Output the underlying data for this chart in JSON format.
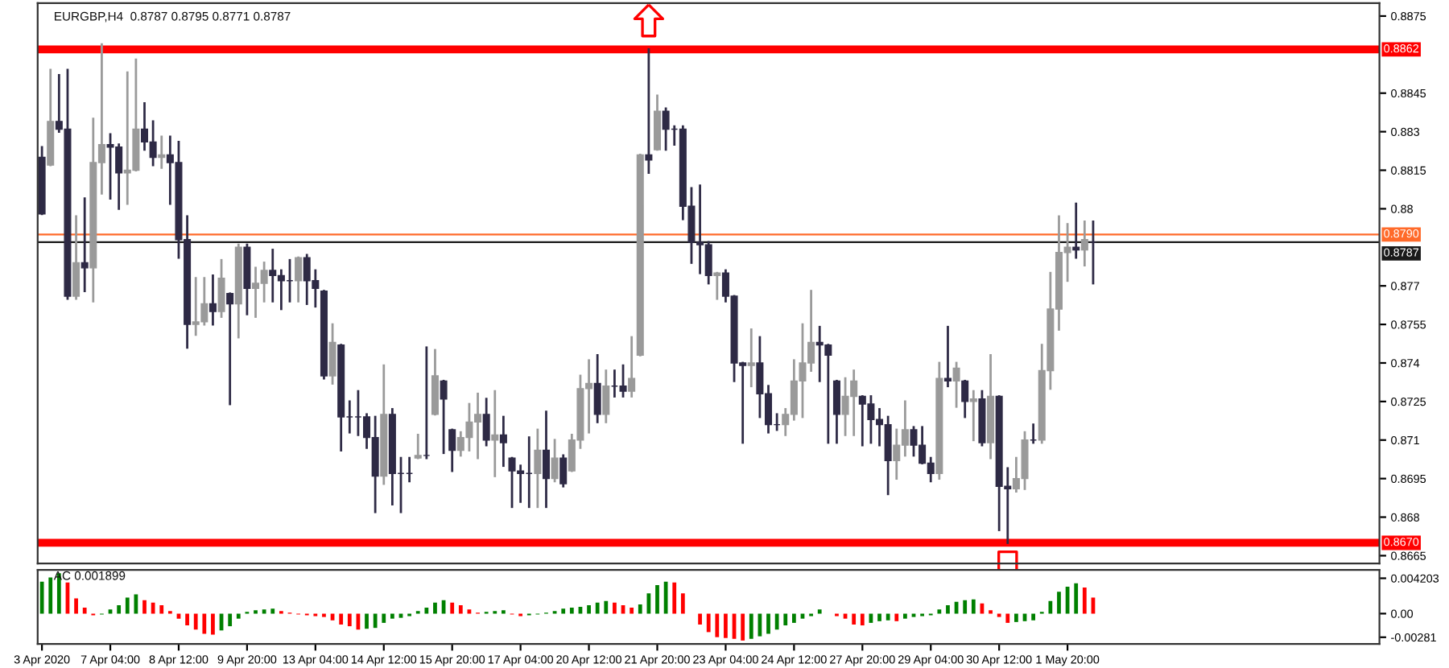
{
  "chart_data": [
    {
      "type": "candlestick",
      "title": "EURGBP,H4  0.8787 0.8795 0.8771 0.8787",
      "categories": [
        null,
        null,
        null,
        null,
        null,
        null,
        null,
        null,
        null,
        null,
        null,
        null,
        null,
        null,
        null,
        null,
        null,
        null,
        null,
        null,
        null,
        null,
        null,
        null,
        null,
        null,
        null,
        null,
        null,
        null,
        null,
        null,
        null,
        null,
        null,
        null,
        null,
        null,
        null,
        null,
        null,
        null,
        null,
        null,
        null,
        null,
        null,
        null,
        null,
        null,
        null,
        null,
        null,
        null,
        null,
        null,
        null,
        null,
        null,
        null,
        null,
        null,
        null,
        null,
        null,
        null,
        null,
        null,
        null,
        null,
        null,
        null,
        null,
        null,
        null,
        null,
        null,
        null,
        null,
        null,
        null,
        null,
        null,
        null,
        null,
        null,
        null,
        null,
        null,
        null,
        null,
        null,
        null,
        null,
        null,
        null,
        null,
        null,
        null,
        null,
        null,
        null,
        null,
        null,
        null,
        null,
        null,
        null,
        null,
        null,
        null,
        null,
        null,
        null,
        null,
        null,
        null,
        null,
        null,
        null,
        null,
        null,
        null,
        null,
        null,
        null,
        null,
        null,
        null,
        null,
        null,
        null,
        null,
        null,
        null,
        null,
        null,
        null,
        null,
        null,
        null,
        null,
        null,
        null,
        null,
        null,
        null,
        null,
        null,
        null,
        null,
        null,
        null,
        null,
        null,
        null,
        null
      ],
      "ohlc": [
        [
          0.882,
          0.8824,
          0.8798,
          0.8798
        ],
        [
          0.8817,
          0.8854,
          0.8817,
          0.8834
        ],
        [
          0.8834,
          0.8852,
          0.883,
          0.8831
        ],
        [
          0.8831,
          0.8854,
          0.8765,
          0.8766
        ],
        [
          0.8766,
          0.8797,
          0.8765,
          0.8779
        ],
        [
          0.8779,
          0.8804,
          0.8768,
          0.8777
        ],
        [
          0.8777,
          0.8835,
          0.8764,
          0.8818
        ],
        [
          0.8818,
          0.8864,
          0.8806,
          0.8825
        ],
        [
          0.8825,
          0.8829,
          0.8804,
          0.8824
        ],
        [
          0.8824,
          0.8825,
          0.88,
          0.8814
        ],
        [
          0.8814,
          0.8853,
          0.8802,
          0.8815
        ],
        [
          0.8815,
          0.8858,
          0.8815,
          0.8831
        ],
        [
          0.8831,
          0.8841,
          0.8823,
          0.8826
        ],
        [
          0.8826,
          0.8834,
          0.8817,
          0.882
        ],
        [
          0.882,
          0.8828,
          0.8816,
          0.8821
        ],
        [
          0.8821,
          0.8828,
          0.8802,
          0.8818
        ],
        [
          0.8818,
          0.8826,
          0.8781,
          0.8788
        ],
        [
          0.8788,
          0.8797,
          0.8746,
          0.8755
        ],
        [
          0.8755,
          0.8773,
          0.8751,
          0.8756
        ],
        [
          0.8756,
          0.8773,
          0.8755,
          0.8763
        ],
        [
          0.8763,
          0.8774,
          0.8755,
          0.876
        ],
        [
          0.876,
          0.878,
          0.8758,
          0.8773
        ],
        [
          0.8767,
          0.8767,
          0.8724,
          0.8763
        ],
        [
          0.8763,
          0.8786,
          0.875,
          0.8785
        ],
        [
          0.8785,
          0.8786,
          0.8759,
          0.8769
        ],
        [
          0.8769,
          0.8777,
          0.8758,
          0.8771
        ],
        [
          0.8771,
          0.8779,
          0.8764,
          0.8776
        ],
        [
          0.8776,
          0.8784,
          0.8764,
          0.8774
        ],
        [
          0.8774,
          0.8776,
          0.8761,
          0.8772
        ],
        [
          0.8772,
          0.878,
          0.8764,
          0.8772
        ],
        [
          0.8772,
          0.8781,
          0.8764,
          0.8781
        ],
        [
          0.8781,
          0.8782,
          0.8763,
          0.8772
        ],
        [
          0.8772,
          0.8776,
          0.8762,
          0.8769
        ],
        [
          0.8768,
          0.8768,
          0.8734,
          0.8735
        ],
        [
          0.8735,
          0.8755,
          0.8732,
          0.8748
        ],
        [
          0.8747,
          0.8747,
          0.8706,
          0.8719
        ],
        [
          0.8719,
          0.8725,
          0.8713,
          0.8719
        ],
        [
          0.8719,
          0.8729,
          0.8712,
          0.8719
        ],
        [
          0.8719,
          0.872,
          0.8707,
          0.8711
        ],
        [
          0.8711,
          0.8719,
          0.8682,
          0.8696
        ],
        [
          0.8696,
          0.8739,
          0.8693,
          0.872
        ],
        [
          0.872,
          0.8722,
          0.8685,
          0.8697
        ],
        [
          0.8697,
          0.8703,
          0.8682,
          0.8697
        ],
        [
          0.8697,
          0.8703,
          0.8694,
          0.8697
        ],
        [
          0.8703,
          0.8712,
          0.8703,
          0.8704
        ],
        [
          0.8704,
          0.8746,
          0.8703,
          0.8704
        ],
        [
          0.872,
          0.8745,
          0.872,
          0.8735
        ],
        [
          0.8733,
          0.8733,
          0.8705,
          0.8726
        ],
        [
          0.8714,
          0.8714,
          0.8698,
          0.8706
        ],
        [
          0.8706,
          0.8713,
          0.8704,
          0.8711
        ],
        [
          0.8711,
          0.8724,
          0.8706,
          0.8717
        ],
        [
          0.8717,
          0.8728,
          0.8703,
          0.872
        ],
        [
          0.872,
          0.8726,
          0.8708,
          0.871
        ],
        [
          0.871,
          0.8729,
          0.8696,
          0.8712
        ],
        [
          0.8712,
          0.8719,
          0.87,
          0.8709
        ],
        [
          0.8703,
          0.8703,
          0.8684,
          0.8698
        ],
        [
          0.8698,
          0.87,
          0.8686,
          0.8697
        ],
        [
          0.8697,
          0.8711,
          0.8684,
          0.8697
        ],
        [
          0.8697,
          0.8714,
          0.8684,
          0.8706
        ],
        [
          0.8706,
          0.8721,
          0.8684,
          0.8695
        ],
        [
          0.8695,
          0.871,
          0.8694,
          0.8703
        ],
        [
          0.8703,
          0.8704,
          0.8692,
          0.8693
        ],
        [
          0.8698,
          0.8712,
          0.8698,
          0.871
        ],
        [
          0.871,
          0.8735,
          0.8707,
          0.873
        ],
        [
          0.873,
          0.8741,
          0.8713,
          0.8732
        ],
        [
          0.8732,
          0.8743,
          0.8717,
          0.872
        ],
        [
          0.872,
          0.8737,
          0.8717,
          0.8731
        ],
        [
          0.8731,
          0.8737,
          0.8727,
          0.8731
        ],
        [
          0.8731,
          0.8739,
          0.8727,
          0.8729
        ],
        [
          0.8729,
          0.875,
          0.8727,
          0.8734
        ],
        [
          0.8743,
          0.8821,
          0.8743,
          0.8821
        ],
        [
          0.8821,
          0.8862,
          0.8814,
          0.8819
        ],
        [
          0.8823,
          0.8844,
          0.8823,
          0.8838
        ],
        [
          0.8838,
          0.8839,
          0.8823,
          0.8831
        ],
        [
          0.8831,
          0.8832,
          0.8825,
          0.8831
        ],
        [
          0.8831,
          0.8832,
          0.8796,
          0.8801
        ],
        [
          0.8801,
          0.8808,
          0.8779,
          0.8787
        ],
        [
          0.8787,
          0.8809,
          0.8775,
          0.8786
        ],
        [
          0.8786,
          0.8787,
          0.8771,
          0.8774
        ],
        [
          0.8774,
          0.8775,
          0.8765,
          0.8775
        ],
        [
          0.8775,
          0.8776,
          0.8764,
          0.8766
        ],
        [
          0.8766,
          0.8766,
          0.8733,
          0.874
        ],
        [
          0.874,
          0.874,
          0.8709,
          0.8739
        ],
        [
          0.8739,
          0.8753,
          0.8731,
          0.874
        ],
        [
          0.874,
          0.875,
          0.8719,
          0.8728
        ],
        [
          0.8728,
          0.8731,
          0.8713,
          0.8716
        ],
        [
          0.8716,
          0.872,
          0.8714,
          0.8716
        ],
        [
          0.8716,
          0.8722,
          0.8712,
          0.872
        ],
        [
          0.872,
          0.8741,
          0.8718,
          0.8733
        ],
        [
          0.8733,
          0.8755,
          0.8719,
          0.874
        ],
        [
          0.874,
          0.8768,
          0.8737,
          0.8748
        ],
        [
          0.8748,
          0.8754,
          0.8733,
          0.8747
        ],
        [
          0.8747,
          0.8747,
          0.8709,
          0.8743
        ],
        [
          0.8733,
          0.8733,
          0.8709,
          0.872
        ],
        [
          0.872,
          0.8734,
          0.8712,
          0.8727
        ],
        [
          0.8727,
          0.8737,
          0.8712,
          0.8733
        ],
        [
          0.8727,
          0.8727,
          0.8708,
          0.8724
        ],
        [
          0.8724,
          0.8727,
          0.8709,
          0.8718
        ],
        [
          0.8718,
          0.8722,
          0.8708,
          0.8716
        ],
        [
          0.8716,
          0.8719,
          0.8689,
          0.8702
        ],
        [
          0.8702,
          0.8714,
          0.8695,
          0.8708
        ],
        [
          0.8708,
          0.8725,
          0.8704,
          0.8714
        ],
        [
          0.8714,
          0.8715,
          0.8704,
          0.8708
        ],
        [
          0.8708,
          0.8715,
          0.8701,
          0.8701
        ],
        [
          0.8701,
          0.8703,
          0.8694,
          0.8697
        ],
        [
          0.8697,
          0.874,
          0.8695,
          0.8734
        ],
        [
          0.8734,
          0.8754,
          0.8731,
          0.8733
        ],
        [
          0.8733,
          0.874,
          0.8723,
          0.8738
        ],
        [
          0.8733,
          0.8733,
          0.8719,
          0.8725
        ],
        [
          0.8725,
          0.8729,
          0.871,
          0.8726
        ],
        [
          0.8726,
          0.8729,
          0.8708,
          0.8709
        ],
        [
          0.8709,
          0.8743,
          0.8703,
          0.8727
        ],
        [
          0.8727,
          0.8727,
          0.8675,
          0.8692
        ],
        [
          0.8692,
          0.8699,
          0.867,
          0.8691
        ],
        [
          0.8691,
          0.8703,
          0.869,
          0.8695
        ],
        [
          0.8695,
          0.8713,
          0.8691,
          0.871
        ],
        [
          0.871,
          0.8716,
          0.8709,
          0.871
        ],
        [
          0.871,
          0.8747,
          0.8709,
          0.8737
        ],
        [
          0.8737,
          0.8775,
          0.873,
          0.8761
        ],
        [
          0.8761,
          0.8797,
          0.8753,
          0.8783
        ],
        [
          0.8783,
          0.8794,
          0.8772,
          0.8785
        ],
        [
          0.8785,
          0.8802,
          0.8781,
          0.8784
        ],
        [
          0.8784,
          0.8795,
          0.8778,
          0.8788
        ],
        [
          0.8787,
          0.8795,
          0.8771,
          0.8787
        ],
        null,
        null,
        null,
        null,
        null,
        null,
        null,
        null,
        null,
        null,
        null,
        null,
        null,
        null,
        null,
        null,
        null,
        null,
        null,
        null,
        null,
        null,
        null,
        null,
        null,
        null,
        null,
        null,
        null,
        null,
        null,
        null,
        null
      ],
      "colors": [
        "#2e2a45",
        "#9a9a9a",
        "#2e2a45",
        "#2e2a45",
        "#9a9a9a",
        "#2e2a45",
        "#9a9a9a",
        "#9a9a9a",
        "#2e2a45",
        "#2e2a45",
        "#9a9a9a",
        "#9a9a9a",
        "#2e2a45",
        "#2e2a45",
        "#9a9a9a",
        "#2e2a45",
        "#2e2a45",
        "#2e2a45",
        "#9a9a9a",
        "#9a9a9a",
        "#2e2a45",
        "#9a9a9a",
        "#2e2a45",
        "#9a9a9a",
        "#2e2a45",
        "#9a9a9a",
        "#9a9a9a",
        "#2e2a45",
        "#2e2a45",
        "#2e2a45",
        "#9a9a9a",
        "#2e2a45",
        "#2e2a45",
        "#2e2a45",
        "#9a9a9a",
        "#2e2a45",
        "#2e2a45",
        "#2e2a45",
        "#2e2a45",
        "#2e2a45",
        "#9a9a9a",
        "#2e2a45",
        "#2e2a45",
        "#2e2a45",
        "#9a9a9a",
        "#2e2a45",
        "#9a9a9a",
        "#2e2a45",
        "#2e2a45",
        "#9a9a9a",
        "#9a9a9a",
        "#9a9a9a",
        "#2e2a45",
        "#9a9a9a",
        "#2e2a45",
        "#2e2a45",
        "#2e2a45",
        "#2e2a45",
        "#9a9a9a",
        "#2e2a45",
        "#9a9a9a",
        "#2e2a45",
        "#9a9a9a",
        "#9a9a9a",
        "#9a9a9a",
        "#2e2a45",
        "#9a9a9a",
        "#2e2a45",
        "#2e2a45",
        "#9a9a9a",
        "#9a9a9a",
        "#2e2a45",
        "#9a9a9a",
        "#2e2a45",
        "#2e2a45",
        "#2e2a45",
        "#2e2a45",
        "#2e2a45",
        "#2e2a45",
        "#9a9a9a",
        "#2e2a45",
        "#2e2a45",
        "#2e2a45",
        "#9a9a9a",
        "#2e2a45",
        "#2e2a45",
        "#2e2a45",
        "#9a9a9a",
        "#9a9a9a",
        "#9a9a9a",
        "#9a9a9a",
        "#2e2a45",
        "#2e2a45",
        "#2e2a45",
        "#9a9a9a",
        "#9a9a9a",
        "#2e2a45",
        "#2e2a45",
        "#2e2a45",
        "#2e2a45",
        "#9a9a9a",
        "#9a9a9a",
        "#2e2a45",
        "#2e2a45",
        "#2e2a45",
        "#9a9a9a",
        "#2e2a45",
        "#9a9a9a",
        "#2e2a45",
        "#9a9a9a",
        "#2e2a45",
        "#9a9a9a",
        "#2e2a45",
        "#2e2a45",
        "#9a9a9a",
        "#9a9a9a",
        "#2e2a45",
        "#9a9a9a",
        "#9a9a9a",
        "#9a9a9a",
        "#9a9a9a",
        "#2e2a45",
        "#9a9a9a",
        "#2e2a45",
        null,
        null,
        null,
        null,
        null,
        null,
        null,
        null,
        null,
        null,
        null,
        null,
        null,
        null,
        null,
        null,
        null,
        null,
        null,
        null,
        null,
        null,
        null,
        null,
        null,
        null,
        null,
        null,
        null,
        null,
        null,
        null,
        null
      ],
      "ylim": [
        0.8662,
        0.888
      ],
      "yticks": [
        0.8875,
        0.8845,
        0.883,
        0.8815,
        0.88,
        0.877,
        0.8755,
        0.874,
        0.8725,
        0.871,
        0.8695,
        0.868,
        0.8665
      ],
      "ref_lines": [
        {
          "axis": "y",
          "value": 0.8862,
          "label": "0.8862",
          "color": "#ff0000",
          "line_style": "solid"
        },
        {
          "axis": "y",
          "value": 0.879,
          "label": "0.8790",
          "color": "#ff6a2a",
          "line_style": "solid"
        },
        {
          "axis": "y",
          "value": 0.8787,
          "label": "0.8787",
          "color": "#1a1a1a",
          "line_style": "solid"
        },
        {
          "axis": "y",
          "value": 0.867,
          "label": "0.8670",
          "color": "#ff0000",
          "line_style": "solid"
        }
      ]
    },
    {
      "type": "bar",
      "title": "AC 0.001899",
      "categories": [
        "3 Apr 2020",
        null,
        null,
        null,
        null,
        null,
        null,
        null,
        "7 Apr 04:00",
        null,
        null,
        null,
        null,
        null,
        null,
        null,
        "8 Apr 12:00",
        null,
        null,
        null,
        null,
        null,
        null,
        null,
        "9 Apr 20:00",
        null,
        null,
        null,
        null,
        null,
        null,
        null,
        "13 Apr 04:00",
        null,
        null,
        null,
        null,
        null,
        null,
        null,
        "14 Apr 12:00",
        null,
        null,
        null,
        null,
        null,
        null,
        null,
        "15 Apr 20:00",
        null,
        null,
        null,
        null,
        null,
        null,
        null,
        "17 Apr 04:00",
        null,
        null,
        null,
        null,
        null,
        null,
        null,
        "20 Apr 12:00",
        null,
        null,
        null,
        null,
        null,
        null,
        null,
        "21 Apr 20:00",
        null,
        null,
        null,
        null,
        null,
        null,
        null,
        "23 Apr 04:00",
        null,
        null,
        null,
        null,
        null,
        null,
        null,
        "24 Apr 12:00",
        null,
        null,
        null,
        null,
        null,
        null,
        null,
        "27 Apr 20:00",
        null,
        null,
        null,
        null,
        null,
        null,
        null,
        "29 Apr 04:00",
        null,
        null,
        null,
        null,
        null,
        null,
        null,
        "30 Apr 12:00",
        null,
        null,
        null,
        null,
        null,
        null,
        null,
        "1 May 20:00",
        null,
        null,
        null,
        null,
        null,
        null,
        null,
        null,
        null,
        null,
        null,
        null,
        null,
        null,
        null,
        null,
        null,
        null,
        null,
        null,
        null,
        null,
        null,
        null,
        null,
        null,
        null,
        null,
        null,
        null,
        null,
        null,
        null,
        null,
        null,
        null
      ],
      "values": [
        0.0038,
        0.0043,
        0.0048,
        0.0037,
        0.0018,
        0.0007,
        -0.0002,
        -0.0001,
        0.0005,
        0.001,
        0.0019,
        0.0023,
        0.0016,
        0.0013,
        0.001,
        0.0003,
        -0.0006,
        -0.0014,
        -0.0019,
        -0.0024,
        -0.0025,
        -0.002,
        -0.0015,
        -0.0006,
        0.0002,
        0.0004,
        0.0005,
        0.0006,
        0.0003,
        0.0001,
        -0.0001,
        -0.0002,
        -0.0003,
        -0.0004,
        -0.0008,
        -0.0013,
        -0.0015,
        -0.0019,
        -0.0018,
        -0.0017,
        -0.0011,
        -0.0006,
        -0.0005,
        -0.0003,
        0.0003,
        0.0007,
        0.0013,
        0.0016,
        0.0013,
        0.001,
        0.0005,
        0.0001,
        0.0002,
        0.0003,
        0.0004,
        -0.0001,
        -0.0003,
        -0.0002,
        -0.0001,
        0.0001,
        0.0003,
        0.0006,
        0.0007,
        0.0008,
        0.001,
        0.0013,
        0.0015,
        0.0013,
        0.001,
        0.0007,
        0.0011,
        0.0024,
        0.0034,
        0.0038,
        0.0037,
        0.0024,
        0.0,
        -0.0013,
        -0.0022,
        -0.0028,
        -0.0029,
        -0.003,
        -0.0032,
        -0.003,
        -0.0027,
        -0.0024,
        -0.0019,
        -0.0014,
        -0.0011,
        -0.0006,
        -0.0003,
        0.0005,
        0.0,
        -0.0003,
        -0.0006,
        -0.0013,
        -0.0014,
        -0.0011,
        -0.0009,
        -0.0008,
        -0.0009,
        -0.0006,
        -0.0004,
        -0.0003,
        -0.0002,
        0.0005,
        0.001,
        0.0014,
        0.0016,
        0.0017,
        0.0012,
        0.0004,
        -0.0004,
        -0.0011,
        -0.001,
        -0.0009,
        -0.0008,
        0.0002,
        0.0015,
        0.0026,
        0.0032,
        0.0036,
        0.0031,
        0.0019,
        null,
        null,
        null,
        null,
        null,
        null,
        null,
        null,
        null,
        null,
        null,
        null,
        null,
        null,
        null,
        null,
        null,
        null,
        null,
        null,
        null,
        null,
        null,
        null,
        null,
        null,
        null,
        null,
        null,
        null,
        null,
        null,
        null
      ],
      "colors": [
        "#008000",
        "#008000",
        "#008000",
        "#ff0000",
        "#ff0000",
        "#ff0000",
        "#ff0000",
        "#008000",
        "#008000",
        "#008000",
        "#008000",
        "#008000",
        "#ff0000",
        "#ff0000",
        "#ff0000",
        "#ff0000",
        "#ff0000",
        "#ff0000",
        "#ff0000",
        "#ff0000",
        "#ff0000",
        "#008000",
        "#008000",
        "#008000",
        "#008000",
        "#008000",
        "#008000",
        "#008000",
        "#ff0000",
        "#ff0000",
        "#ff0000",
        "#ff0000",
        "#ff0000",
        "#ff0000",
        "#ff0000",
        "#ff0000",
        "#ff0000",
        "#ff0000",
        "#008000",
        "#008000",
        "#008000",
        "#008000",
        "#008000",
        "#008000",
        "#008000",
        "#008000",
        "#008000",
        "#008000",
        "#ff0000",
        "#ff0000",
        "#ff0000",
        "#ff0000",
        "#008000",
        "#008000",
        "#008000",
        "#ff0000",
        "#ff0000",
        "#008000",
        "#008000",
        "#008000",
        "#008000",
        "#008000",
        "#008000",
        "#008000",
        "#008000",
        "#008000",
        "#008000",
        "#ff0000",
        "#ff0000",
        "#ff0000",
        "#008000",
        "#008000",
        "#008000",
        "#008000",
        "#ff0000",
        "#ff0000",
        "#ff0000",
        "#ff0000",
        "#ff0000",
        "#ff0000",
        "#ff0000",
        "#ff0000",
        "#ff0000",
        "#008000",
        "#008000",
        "#008000",
        "#008000",
        "#008000",
        "#008000",
        "#008000",
        "#008000",
        "#008000",
        "#ff0000",
        "#ff0000",
        "#ff0000",
        "#ff0000",
        "#ff0000",
        "#008000",
        "#008000",
        "#008000",
        "#ff0000",
        "#008000",
        "#008000",
        "#008000",
        "#008000",
        "#008000",
        "#008000",
        "#008000",
        "#008000",
        "#008000",
        "#ff0000",
        "#ff0000",
        "#ff0000",
        "#ff0000",
        "#008000",
        "#008000",
        "#008000",
        "#008000",
        "#008000",
        "#008000",
        "#008000",
        "#008000",
        "#ff0000",
        "#ff0000",
        null,
        null,
        null,
        null,
        null,
        null,
        null,
        null,
        null,
        null,
        null,
        null,
        null,
        null,
        null,
        null,
        null,
        null,
        null,
        null,
        null,
        null,
        null,
        null,
        null,
        null,
        null,
        null,
        null,
        null,
        null,
        null,
        null
      ],
      "ylim": [
        -0.0036,
        0.0052
      ],
      "yticks": [
        {
          "value": 0.004203,
          "label": "0.004203"
        },
        {
          "value": 0,
          "label": "0.00"
        },
        {
          "value": -0.00281,
          "label": "-0.00281"
        }
      ]
    }
  ]
}
